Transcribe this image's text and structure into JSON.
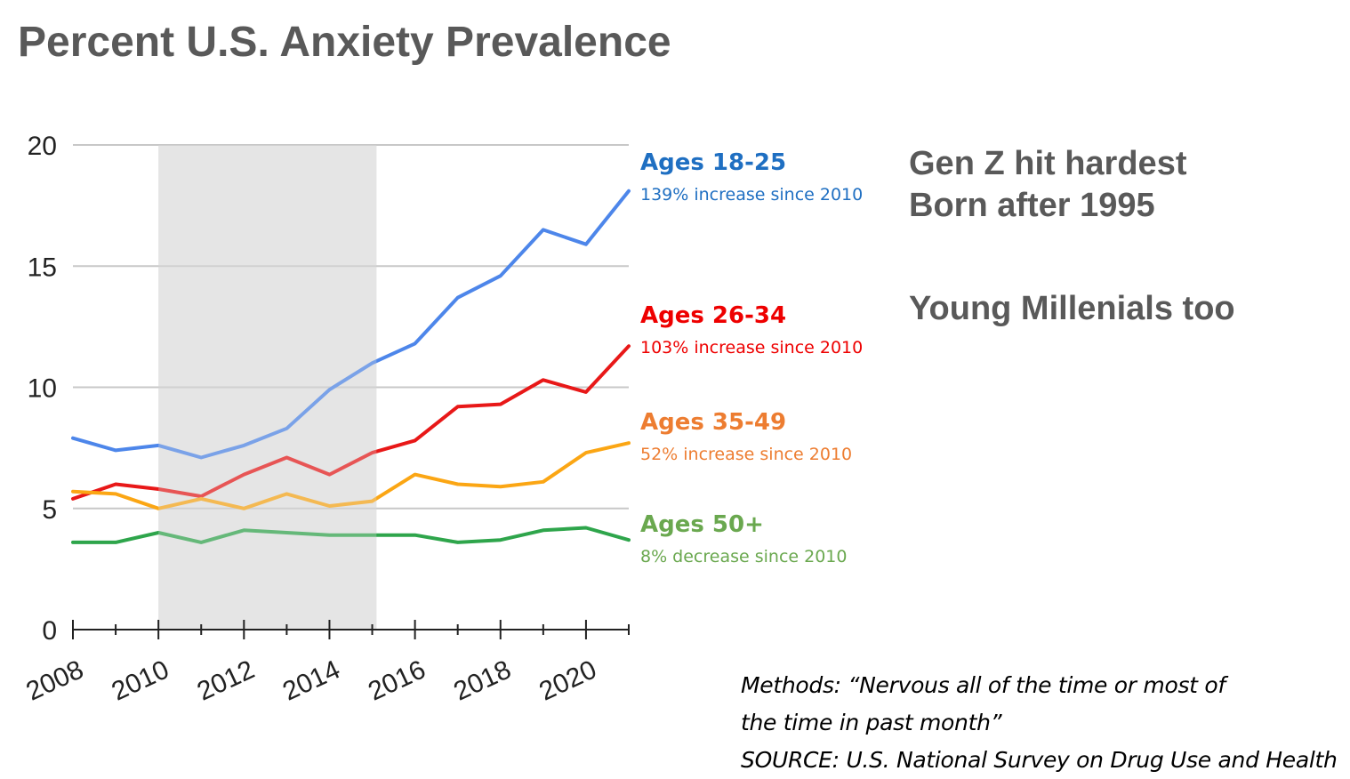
{
  "title": "Percent U.S. Anxiety Prevalence",
  "chart_data": {
    "type": "line",
    "title": "Percent U.S. Anxiety Prevalence",
    "x": [
      2008,
      2009,
      2010,
      2011,
      2012,
      2013,
      2014,
      2015,
      2016,
      2017,
      2018,
      2019,
      2020,
      2021
    ],
    "xlim": [
      2008,
      2021
    ],
    "ylim": [
      0,
      20
    ],
    "xticks": [
      "2008",
      "2010",
      "2012",
      "2014",
      "2016",
      "2018",
      "2020"
    ],
    "yticks": [
      "0",
      "5",
      "10",
      "15",
      "20"
    ],
    "grid": true,
    "shaded_region": {
      "x_start": 2010,
      "x_end": 2015.1
    },
    "series": [
      {
        "name": "Ages 18-25",
        "note": "139% increase since 2010",
        "color": "#1f6fc2",
        "line_color": "#4d86ea",
        "values": [
          7.9,
          7.4,
          7.6,
          7.1,
          7.6,
          8.3,
          9.9,
          11.0,
          11.8,
          13.7,
          14.6,
          16.5,
          15.9,
          18.1
        ]
      },
      {
        "name": "Ages 26-34",
        "note": "103% increase since 2010",
        "color": "#ee0000",
        "line_color": "#e81818",
        "values": [
          5.4,
          6.0,
          5.8,
          5.5,
          6.4,
          7.1,
          6.4,
          7.3,
          7.8,
          9.2,
          9.3,
          10.3,
          9.8,
          11.7
        ]
      },
      {
        "name": "Ages 35-49",
        "note": "52% increase since 2010",
        "color": "#ed7d31",
        "line_color": "#fba614",
        "values": [
          5.7,
          5.6,
          5.0,
          5.4,
          5.0,
          5.6,
          5.1,
          5.3,
          6.4,
          6.0,
          5.9,
          6.1,
          7.3,
          7.7
        ]
      },
      {
        "name": "Ages 50+",
        "note": "8% decrease since 2010",
        "color": "#6aa84f",
        "line_color": "#2ea54b",
        "values": [
          3.6,
          3.6,
          4.0,
          3.6,
          4.1,
          4.0,
          3.9,
          3.9,
          3.9,
          3.6,
          3.7,
          4.1,
          4.2,
          3.7
        ]
      }
    ]
  },
  "callouts": [
    "Gen Z hit hardest",
    "Born after 1995",
    "Young Millenials too"
  ],
  "methods": [
    "Methods: “Nervous all of the time or most of",
    "the time in past month”",
    "SOURCE: U.S. National Survey on Drug Use and Health"
  ]
}
